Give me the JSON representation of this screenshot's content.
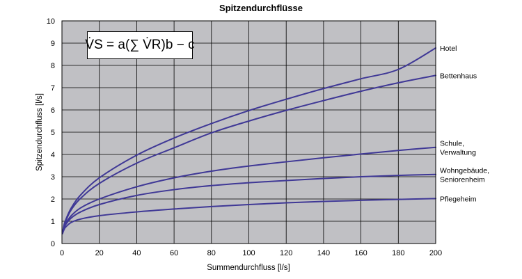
{
  "chart_data": {
    "type": "line",
    "title": "Spitzendurchflüsse",
    "xlabel": "Summendurchfluss [l/s]",
    "ylabel": "Spitzendurchfluss [l/s]",
    "xlim": [
      0,
      200
    ],
    "ylim": [
      0,
      10
    ],
    "x_ticks": [
      "0",
      "20",
      "40",
      "60",
      "80",
      "100",
      "120",
      "140",
      "160",
      "180",
      "200"
    ],
    "y_ticks": [
      "0",
      "1",
      "2",
      "3",
      "4",
      "5",
      "6",
      "7",
      "8",
      "9",
      "10"
    ],
    "grid": true,
    "formula": "V̇S = a(∑ V̇R)b − c",
    "series": [
      {
        "name": "Hotel",
        "label_lines": [
          "Hotel"
        ],
        "x": [
          0.3,
          1,
          2,
          5,
          10,
          20,
          40,
          60,
          80,
          100,
          120,
          140,
          160,
          180,
          200
        ],
        "y": [
          0.45,
          0.79,
          1.06,
          1.6,
          2.18,
          2.95,
          3.97,
          4.74,
          5.39,
          5.97,
          6.48,
          6.96,
          7.4,
          7.82,
          8.78
        ]
      },
      {
        "name": "Bettenhaus",
        "label_lines": [
          "Bettenhaus"
        ],
        "x": [
          0.3,
          1,
          2,
          5,
          10,
          20,
          40,
          60,
          80,
          100,
          120,
          140,
          160,
          180,
          200
        ],
        "y": [
          0.45,
          0.76,
          1.01,
          1.52,
          2.03,
          2.7,
          3.61,
          4.3,
          4.97,
          5.5,
          5.98,
          6.42,
          6.84,
          7.22,
          7.55
        ]
      },
      {
        "name": "Schule, Verwaltung",
        "label_lines": [
          "Schule,",
          "Verwaltung"
        ],
        "x": [
          0.3,
          1,
          2,
          5,
          10,
          20,
          40,
          60,
          80,
          100,
          120,
          140,
          160,
          180,
          200
        ],
        "y": [
          0.45,
          0.7,
          0.9,
          1.25,
          1.6,
          2.0,
          2.55,
          2.95,
          3.25,
          3.48,
          3.67,
          3.85,
          4.02,
          4.18,
          4.32
        ]
      },
      {
        "name": "Wohngebäude, Seniorenheim",
        "label_lines": [
          "Wohngebäude,",
          "Seniorenheim"
        ],
        "x": [
          0.3,
          1,
          2,
          5,
          10,
          20,
          40,
          60,
          80,
          100,
          120,
          140,
          160,
          180,
          200
        ],
        "y": [
          0.45,
          0.66,
          0.85,
          1.15,
          1.42,
          1.75,
          2.16,
          2.42,
          2.6,
          2.73,
          2.83,
          2.92,
          3.0,
          3.06,
          3.1
        ]
      },
      {
        "name": "Pflegeheim",
        "label_lines": [
          "Pflegeheim"
        ],
        "x": [
          0.3,
          1,
          2,
          5,
          10,
          20,
          40,
          60,
          80,
          100,
          120,
          140,
          160,
          180,
          200
        ],
        "y": [
          0.45,
          0.6,
          0.74,
          0.95,
          1.1,
          1.25,
          1.42,
          1.55,
          1.66,
          1.75,
          1.83,
          1.89,
          1.94,
          1.98,
          2.02
        ]
      }
    ],
    "colors": {
      "plot_background": "#c0c0c4",
      "line": "#3f3896",
      "grid": "#000000"
    }
  }
}
